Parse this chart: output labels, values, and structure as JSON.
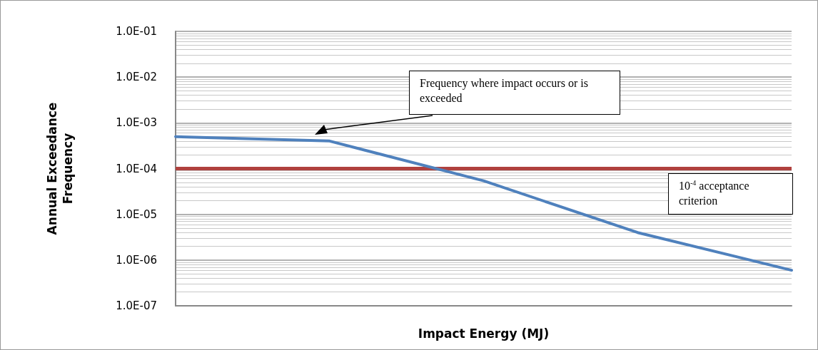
{
  "chart_data": {
    "type": "line",
    "xlabel": "Impact Energy (MJ)",
    "ylabel": "Annual Exceedance Frequency",
    "categories": [
      null,
      null,
      null,
      null,
      null
    ],
    "series": [
      {
        "color": "#4f81bd",
        "values": [
          0.0005,
          0.0004,
          5.4e-05,
          4e-06,
          6e-07
        ]
      }
    ],
    "log": "y",
    "ylim": [
      1e-07,
      0.1
    ],
    "yticks": [
      {
        "value": 1e-07,
        "label": "1.0E-07"
      },
      {
        "value": 1e-06,
        "label": "1.0E-06"
      },
      {
        "value": 1e-05,
        "label": "1.0E-05"
      },
      {
        "value": 0.0001,
        "label": "1.0E-04"
      },
      {
        "value": 0.001,
        "label": "1.0E-03"
      },
      {
        "value": 0.01,
        "label": "1.0E-02"
      },
      {
        "value": 0.1,
        "label": "1.0E-01"
      }
    ],
    "grid": "y",
    "marker": "none",
    "line_style": "solid",
    "ref_lines": [
      {
        "axis": "y",
        "value": 0.0001,
        "label": "10$^{-4}$ acceptance criterion",
        "color": "#b0413e"
      }
    ],
    "annotations": [
      "Frequency where impact occurs or is exceeded"
    ]
  }
}
